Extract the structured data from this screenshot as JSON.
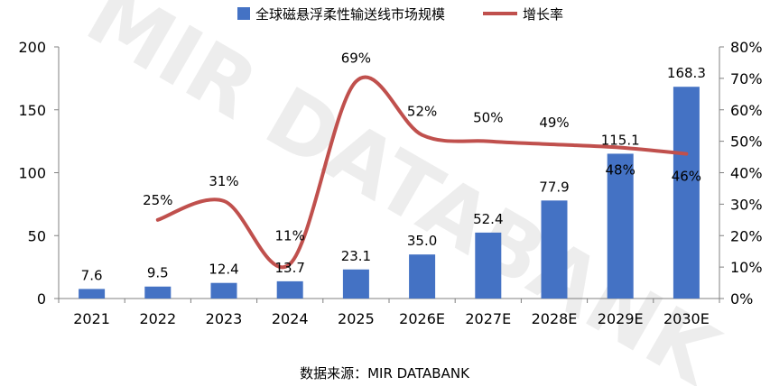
{
  "chart_data": {
    "type": "bar",
    "categories": [
      "2021",
      "2022",
      "2023",
      "2024",
      "2025",
      "2026E",
      "2027E",
      "2028E",
      "2029E",
      "2030E"
    ],
    "series": [
      {
        "name": "全球磁悬浮柔性输送线市场规模",
        "type": "bar",
        "axis": "left",
        "values": [
          7.6,
          9.5,
          12.4,
          13.7,
          23.1,
          35.0,
          52.4,
          77.9,
          115.1,
          168.3
        ],
        "labels": [
          "7.6",
          "9.5",
          "12.4",
          "13.7",
          "23.1",
          "35.0",
          "52.4",
          "77.9",
          "115.1",
          "168.3"
        ],
        "color": "#4472c4"
      },
      {
        "name": "增长率",
        "type": "line",
        "axis": "right",
        "values": [
          null,
          25,
          31,
          11,
          69,
          52,
          50,
          49,
          48,
          46
        ],
        "labels": [
          "",
          "25%",
          "31%",
          "11%",
          "69%",
          "52%",
          "50%",
          "49%",
          "48%",
          "46%"
        ],
        "color": "#c0504d"
      }
    ],
    "ylim_left": [
      0,
      200
    ],
    "yticks_left": [
      "0",
      "50",
      "100",
      "150",
      "200"
    ],
    "ylim_right": [
      0,
      80
    ],
    "yticks_right": [
      "0%",
      "10%",
      "20%",
      "30%",
      "40%",
      "50%",
      "60%",
      "70%",
      "80%"
    ],
    "legend_position": "top-center",
    "grid": false
  },
  "source": "数据来源：MIR DATABANK",
  "watermark": "MIR DATABANK"
}
